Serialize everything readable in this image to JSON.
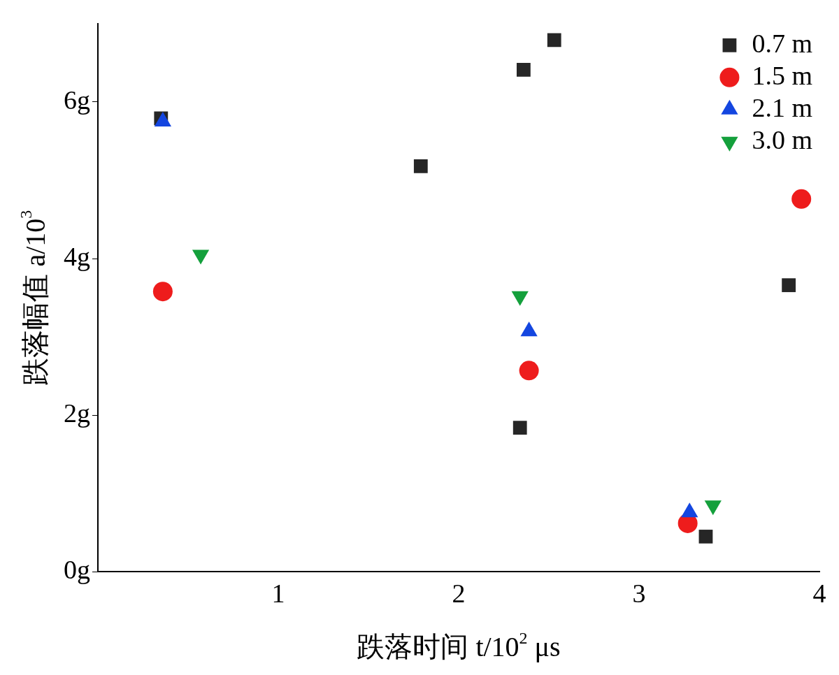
{
  "chart_data": {
    "type": "scatter",
    "xlabel": "跌落时间 t/10$^{2}$ μs",
    "ylabel": "跌落幅值 a/10$^{3}$",
    "xlim": [
      0,
      4
    ],
    "xticks": [
      1,
      2,
      3,
      4
    ],
    "ylim": [
      0,
      7
    ],
    "yticks": [
      {
        "value": 0,
        "label": "0g"
      },
      {
        "value": 2,
        "label": "2g"
      },
      {
        "value": 4,
        "label": "4g"
      },
      {
        "value": 6,
        "label": "6g"
      }
    ],
    "grid": false,
    "legend": "top right",
    "series": [
      {
        "name": "0.7 m",
        "color": "#262626",
        "marker": "square",
        "x": [
          0.35,
          1.79,
          2.36,
          2.53,
          2.34,
          3.37,
          3.83
        ],
        "values": [
          5.79,
          5.18,
          6.41,
          6.79,
          1.84,
          0.45,
          3.66
        ]
      },
      {
        "name": "1.5 m",
        "color": "#ee1c1c",
        "marker": "circle",
        "x": [
          0.36,
          2.39,
          3.27,
          3.9
        ],
        "values": [
          3.58,
          2.57,
          0.62,
          4.76
        ]
      },
      {
        "name": "2.1 m",
        "color": "#1446e0",
        "marker": "triangle",
        "x": [
          0.36,
          2.39,
          3.28
        ],
        "values": [
          5.75,
          3.07,
          0.76
        ]
      },
      {
        "name": "3.0 m",
        "color": "#14a03c",
        "marker": "triangle-down",
        "x": [
          0.57,
          2.34,
          3.41
        ],
        "values": [
          4.05,
          3.52,
          0.85
        ]
      }
    ]
  }
}
